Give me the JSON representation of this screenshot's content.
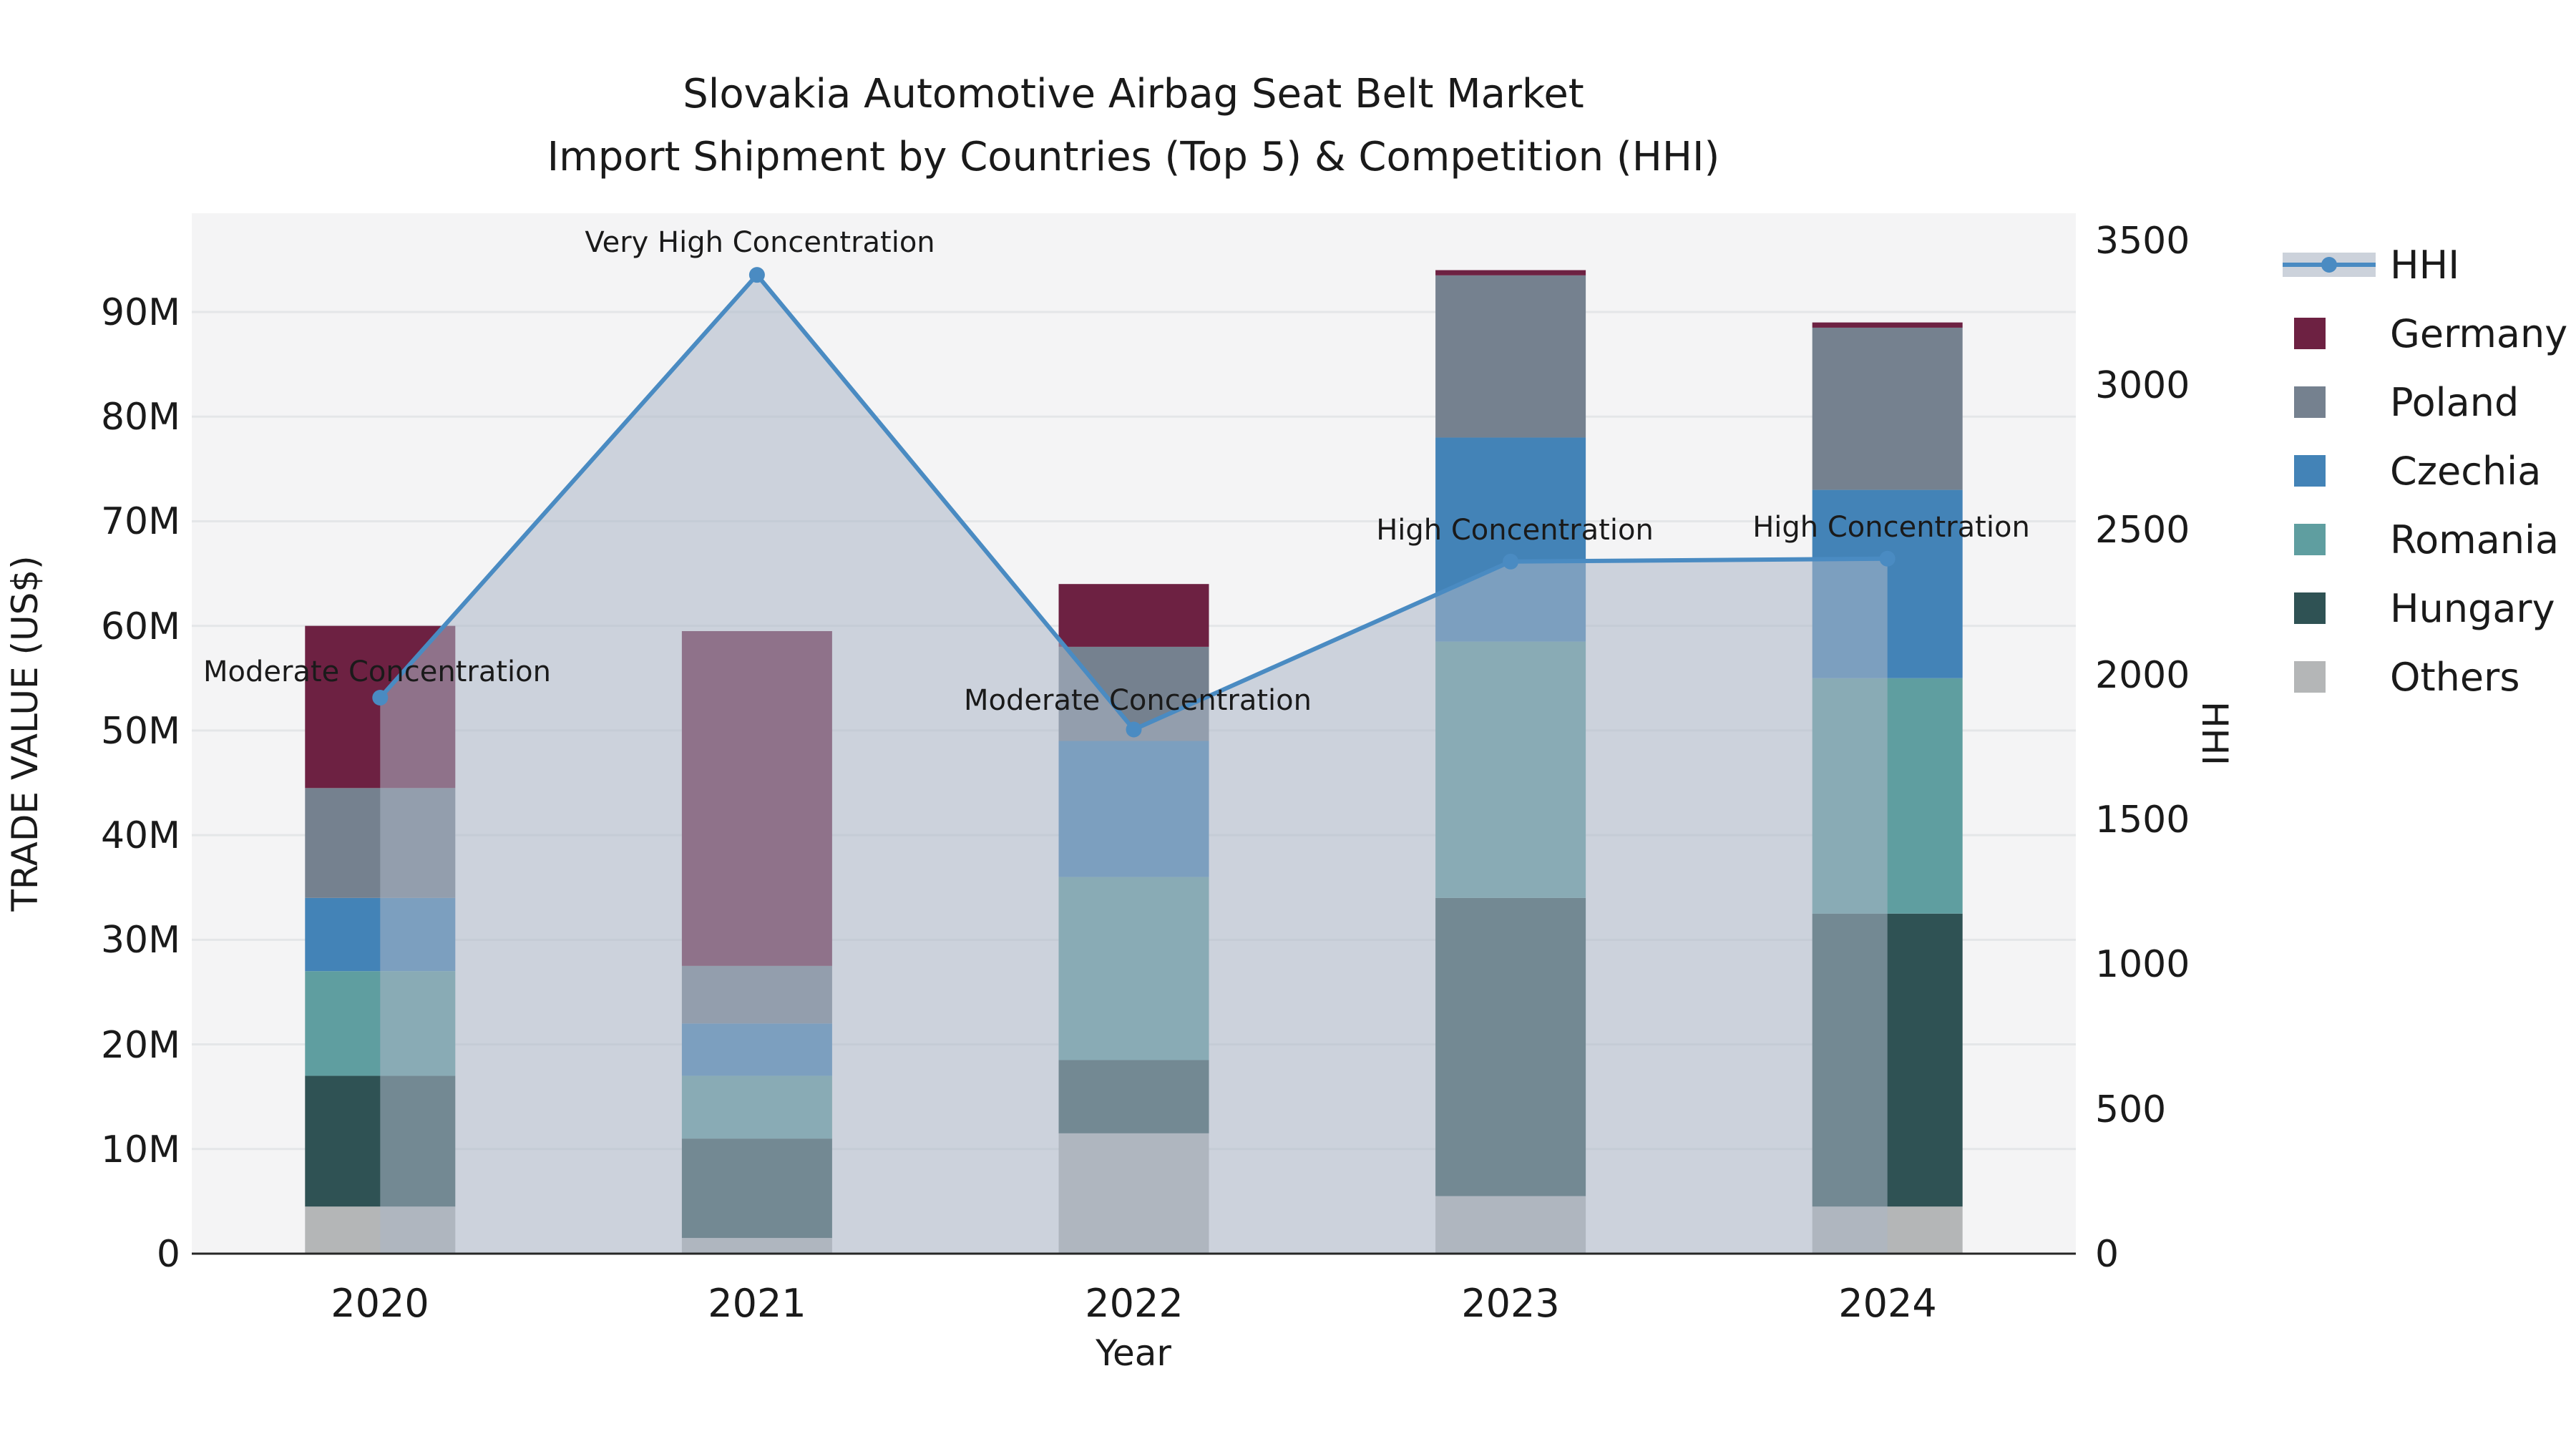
{
  "title": {
    "line1": "Slovakia Automotive Airbag Seat Belt Market",
    "line2": "Import Shipment by Countries (Top 5) & Competition (HHI)"
  },
  "axes": {
    "x_label": "Year",
    "y_left_label": "TRADE VALUE (US$)",
    "y_right_label": "HHI",
    "y_left_ticks": [
      "0",
      "10M",
      "20M",
      "30M",
      "40M",
      "50M",
      "60M",
      "70M",
      "80M",
      "90M"
    ],
    "y_right_ticks": [
      "0",
      "500",
      "1000",
      "1500",
      "2000",
      "2500",
      "3000",
      "3500"
    ],
    "x_ticks": [
      "2020",
      "2021",
      "2022",
      "2023",
      "2024"
    ]
  },
  "legend": {
    "hhi_label": "HHI",
    "items": [
      {
        "label": "Germany",
        "color": "#6d2142"
      },
      {
        "label": "Poland",
        "color": "#75818f"
      },
      {
        "label": "Czechia",
        "color": "#4383b7"
      },
      {
        "label": "Romania",
        "color": "#5f9ea0"
      },
      {
        "label": "Hungary",
        "color": "#2f5254"
      },
      {
        "label": "Others",
        "color": "#b4b6b7"
      }
    ]
  },
  "colors": {
    "hhi_line": "#4a8bc2",
    "hhi_area": "rgba(172,182,198,0.55)",
    "hhi_legend_band": "#ccd2db",
    "plot_bg": "#f4f4f5",
    "grid": "#e4e6e8",
    "axis_line": "#262626"
  },
  "chart_data": {
    "type": "combo: stacked-bar + line",
    "categories": [
      "2020",
      "2021",
      "2022",
      "2023",
      "2024"
    ],
    "bar_value_unit": "million US$ (trade value)",
    "series": [
      {
        "name": "Germany",
        "color": "#6d2142",
        "values": [
          15.5,
          32.0,
          6.0,
          0.5,
          0.5
        ]
      },
      {
        "name": "Poland",
        "color": "#75818f",
        "values": [
          10.5,
          5.5,
          9.0,
          15.5,
          15.5
        ]
      },
      {
        "name": "Czechia",
        "color": "#4383b7",
        "values": [
          7.0,
          5.0,
          13.0,
          19.5,
          18.0
        ]
      },
      {
        "name": "Romania",
        "color": "#5f9ea0",
        "values": [
          10.0,
          6.0,
          17.5,
          24.5,
          22.5
        ]
      },
      {
        "name": "Hungary",
        "color": "#2f5254",
        "values": [
          12.5,
          9.5,
          7.0,
          28.5,
          28.0
        ]
      },
      {
        "name": "Others",
        "color": "#b4b6b7",
        "values": [
          4.5,
          1.5,
          11.5,
          5.5,
          4.5
        ]
      }
    ],
    "bar_totals_million": [
      60.0,
      59.5,
      64.0,
      94.0,
      89.0
    ],
    "stack_order_bottom_to_top": [
      "Others",
      "Hungary",
      "Romania",
      "Czechia",
      "Poland",
      "Germany"
    ],
    "line": {
      "name": "HHI",
      "axis": "right",
      "values": [
        1920,
        3380,
        1810,
        2390,
        2400
      ],
      "style": "line with circular markers and light grey area fill to zero"
    },
    "annotations": [
      {
        "category": "2020",
        "text": "Moderate Concentration"
      },
      {
        "category": "2021",
        "text": "Very High Concentration"
      },
      {
        "category": "2022",
        "text": "Moderate Concentration"
      },
      {
        "category": "2023",
        "text": "High Concentration"
      },
      {
        "category": "2024",
        "text": "High Concentration"
      }
    ],
    "title": "Slovakia Automotive Airbag Seat Belt Market — Import Shipment by Countries (Top 5) & Competition (HHI)",
    "xlabel": "Year",
    "ylabel_left": "TRADE VALUE (US$)",
    "ylabel_right": "HHI",
    "ylim_left_million": [
      0,
      99.5
    ],
    "ylim_right": [
      0,
      3500
    ],
    "grid": "horizontal lines every 10M",
    "legend_position": "outside right"
  }
}
